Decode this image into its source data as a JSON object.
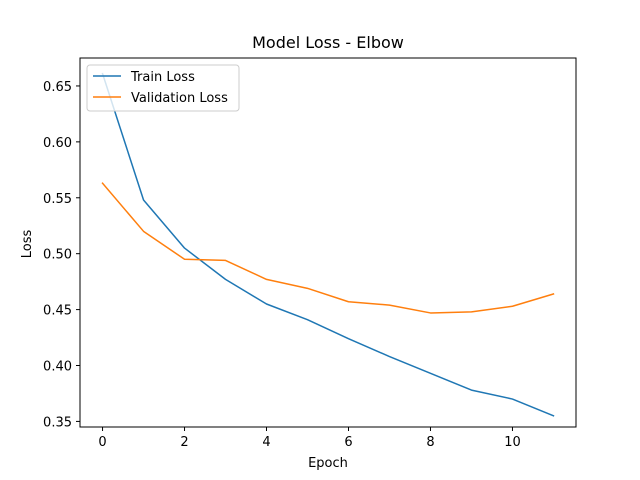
{
  "chart_data": {
    "type": "line",
    "title": "Model Loss - Elbow",
    "xlabel": "Epoch",
    "ylabel": "Loss",
    "xlim": [
      -0.55,
      11.55
    ],
    "ylim": [
      0.345,
      0.675
    ],
    "xticks": [
      0,
      2,
      4,
      6,
      8,
      10
    ],
    "yticks": [
      0.35,
      0.4,
      0.45,
      0.5,
      0.55,
      0.6,
      0.65
    ],
    "grid": false,
    "legend_position": "upper-left",
    "x": [
      0,
      1,
      2,
      3,
      4,
      5,
      6,
      7,
      8,
      9,
      10,
      11
    ],
    "series": [
      {
        "name": "Train Loss",
        "color": "#1f77b4",
        "values": [
          0.661,
          0.548,
          0.505,
          0.477,
          0.455,
          0.441,
          0.424,
          0.408,
          0.393,
          0.378,
          0.37,
          0.355
        ]
      },
      {
        "name": "Validation Loss",
        "color": "#ff7f0e",
        "values": [
          0.563,
          0.52,
          0.495,
          0.494,
          0.477,
          0.469,
          0.457,
          0.454,
          0.447,
          0.448,
          0.453,
          0.464
        ]
      }
    ]
  }
}
